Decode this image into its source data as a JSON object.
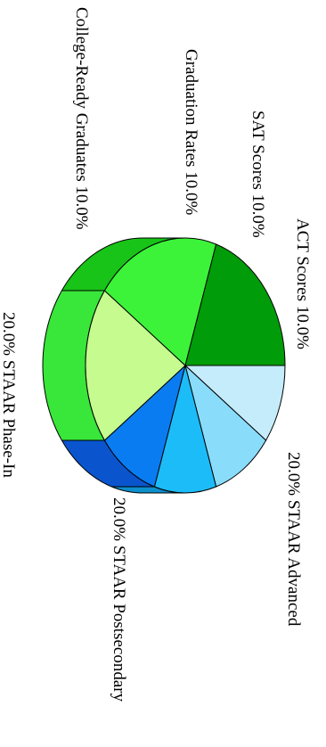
{
  "chart_data": {
    "type": "pie",
    "title": "",
    "rotation": "rotated 90 degrees clockwise",
    "slices": [
      {
        "label": "ACT Scores",
        "value": 10.0,
        "value_label": "10.0%",
        "color": "#c5ecfb",
        "side_color": "#9fc7dc"
      },
      {
        "label": "SAT Scores",
        "value": 10.0,
        "value_label": "10.0%",
        "color": "#8adcfb",
        "side_color": "#5fb8dd"
      },
      {
        "label": "Graduation Rates",
        "value": 10.0,
        "value_label": "10.0%",
        "color": "#1cbcf9",
        "side_color": "#0d8fcd"
      },
      {
        "label": "College-Ready Graduates",
        "value": 10.0,
        "value_label": "10.0%",
        "color": "#0a7cf2",
        "side_color": "#0a55cd"
      },
      {
        "label": "STAAR Phase-In",
        "value": 20.0,
        "value_label": "20.0%",
        "color": "#c5fb8f",
        "side_color": "#39e63a"
      },
      {
        "label": "STAAR Postsecondary",
        "value": 20.0,
        "value_label": "20.0%",
        "color": "#3cf33a",
        "side_color": "#18c418"
      },
      {
        "label": "STAAR Advanced",
        "value": 20.0,
        "value_label": "20.0%",
        "color": "#009c09",
        "side_color": "#007a07"
      }
    ]
  }
}
